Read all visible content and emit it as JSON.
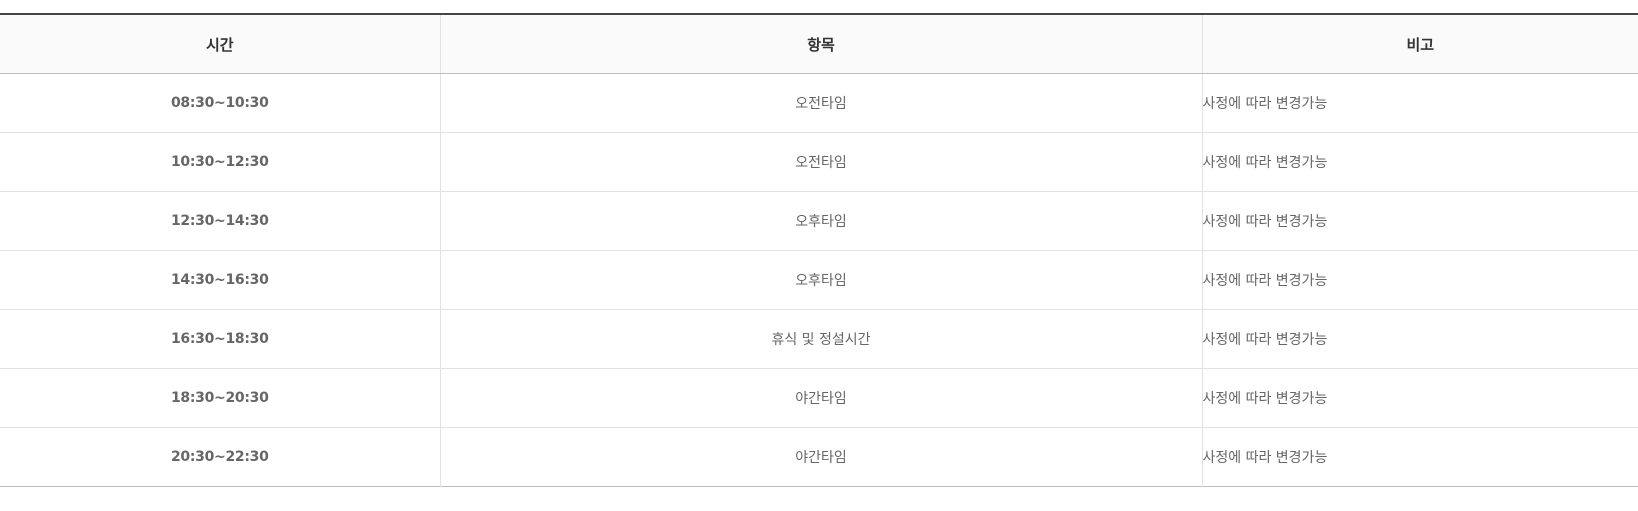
{
  "colors": {
    "time_text": "#1e3a8a",
    "body_text": "#666666",
    "header_text": "#333333",
    "header_bg": "#fafafa",
    "top_border": "#444444"
  },
  "table": {
    "headers": {
      "time": "시간",
      "item": "항목",
      "note": "비고"
    },
    "rows": [
      {
        "time": "08:30~10:30",
        "item": "오전타임",
        "note": "사정에 따라 변경가능"
      },
      {
        "time": "10:30~12:30",
        "item": "오전타임",
        "note": "사정에 따라 변경가능"
      },
      {
        "time": "12:30~14:30",
        "item": "오후타임",
        "note": "사정에 따라 변경가능"
      },
      {
        "time": "14:30~16:30",
        "item": "오후타임",
        "note": "사정에 따라 변경가능"
      },
      {
        "time": "16:30~18:30",
        "item": "휴식 및 정설시간",
        "note": "사정에 따라 변경가능"
      },
      {
        "time": "18:30~20:30",
        "item": "야간타임",
        "note": "사정에 따라 변경가능"
      },
      {
        "time": "20:30~22:30",
        "item": "야간타임",
        "note": "사정에 따라 변경가능"
      }
    ]
  }
}
